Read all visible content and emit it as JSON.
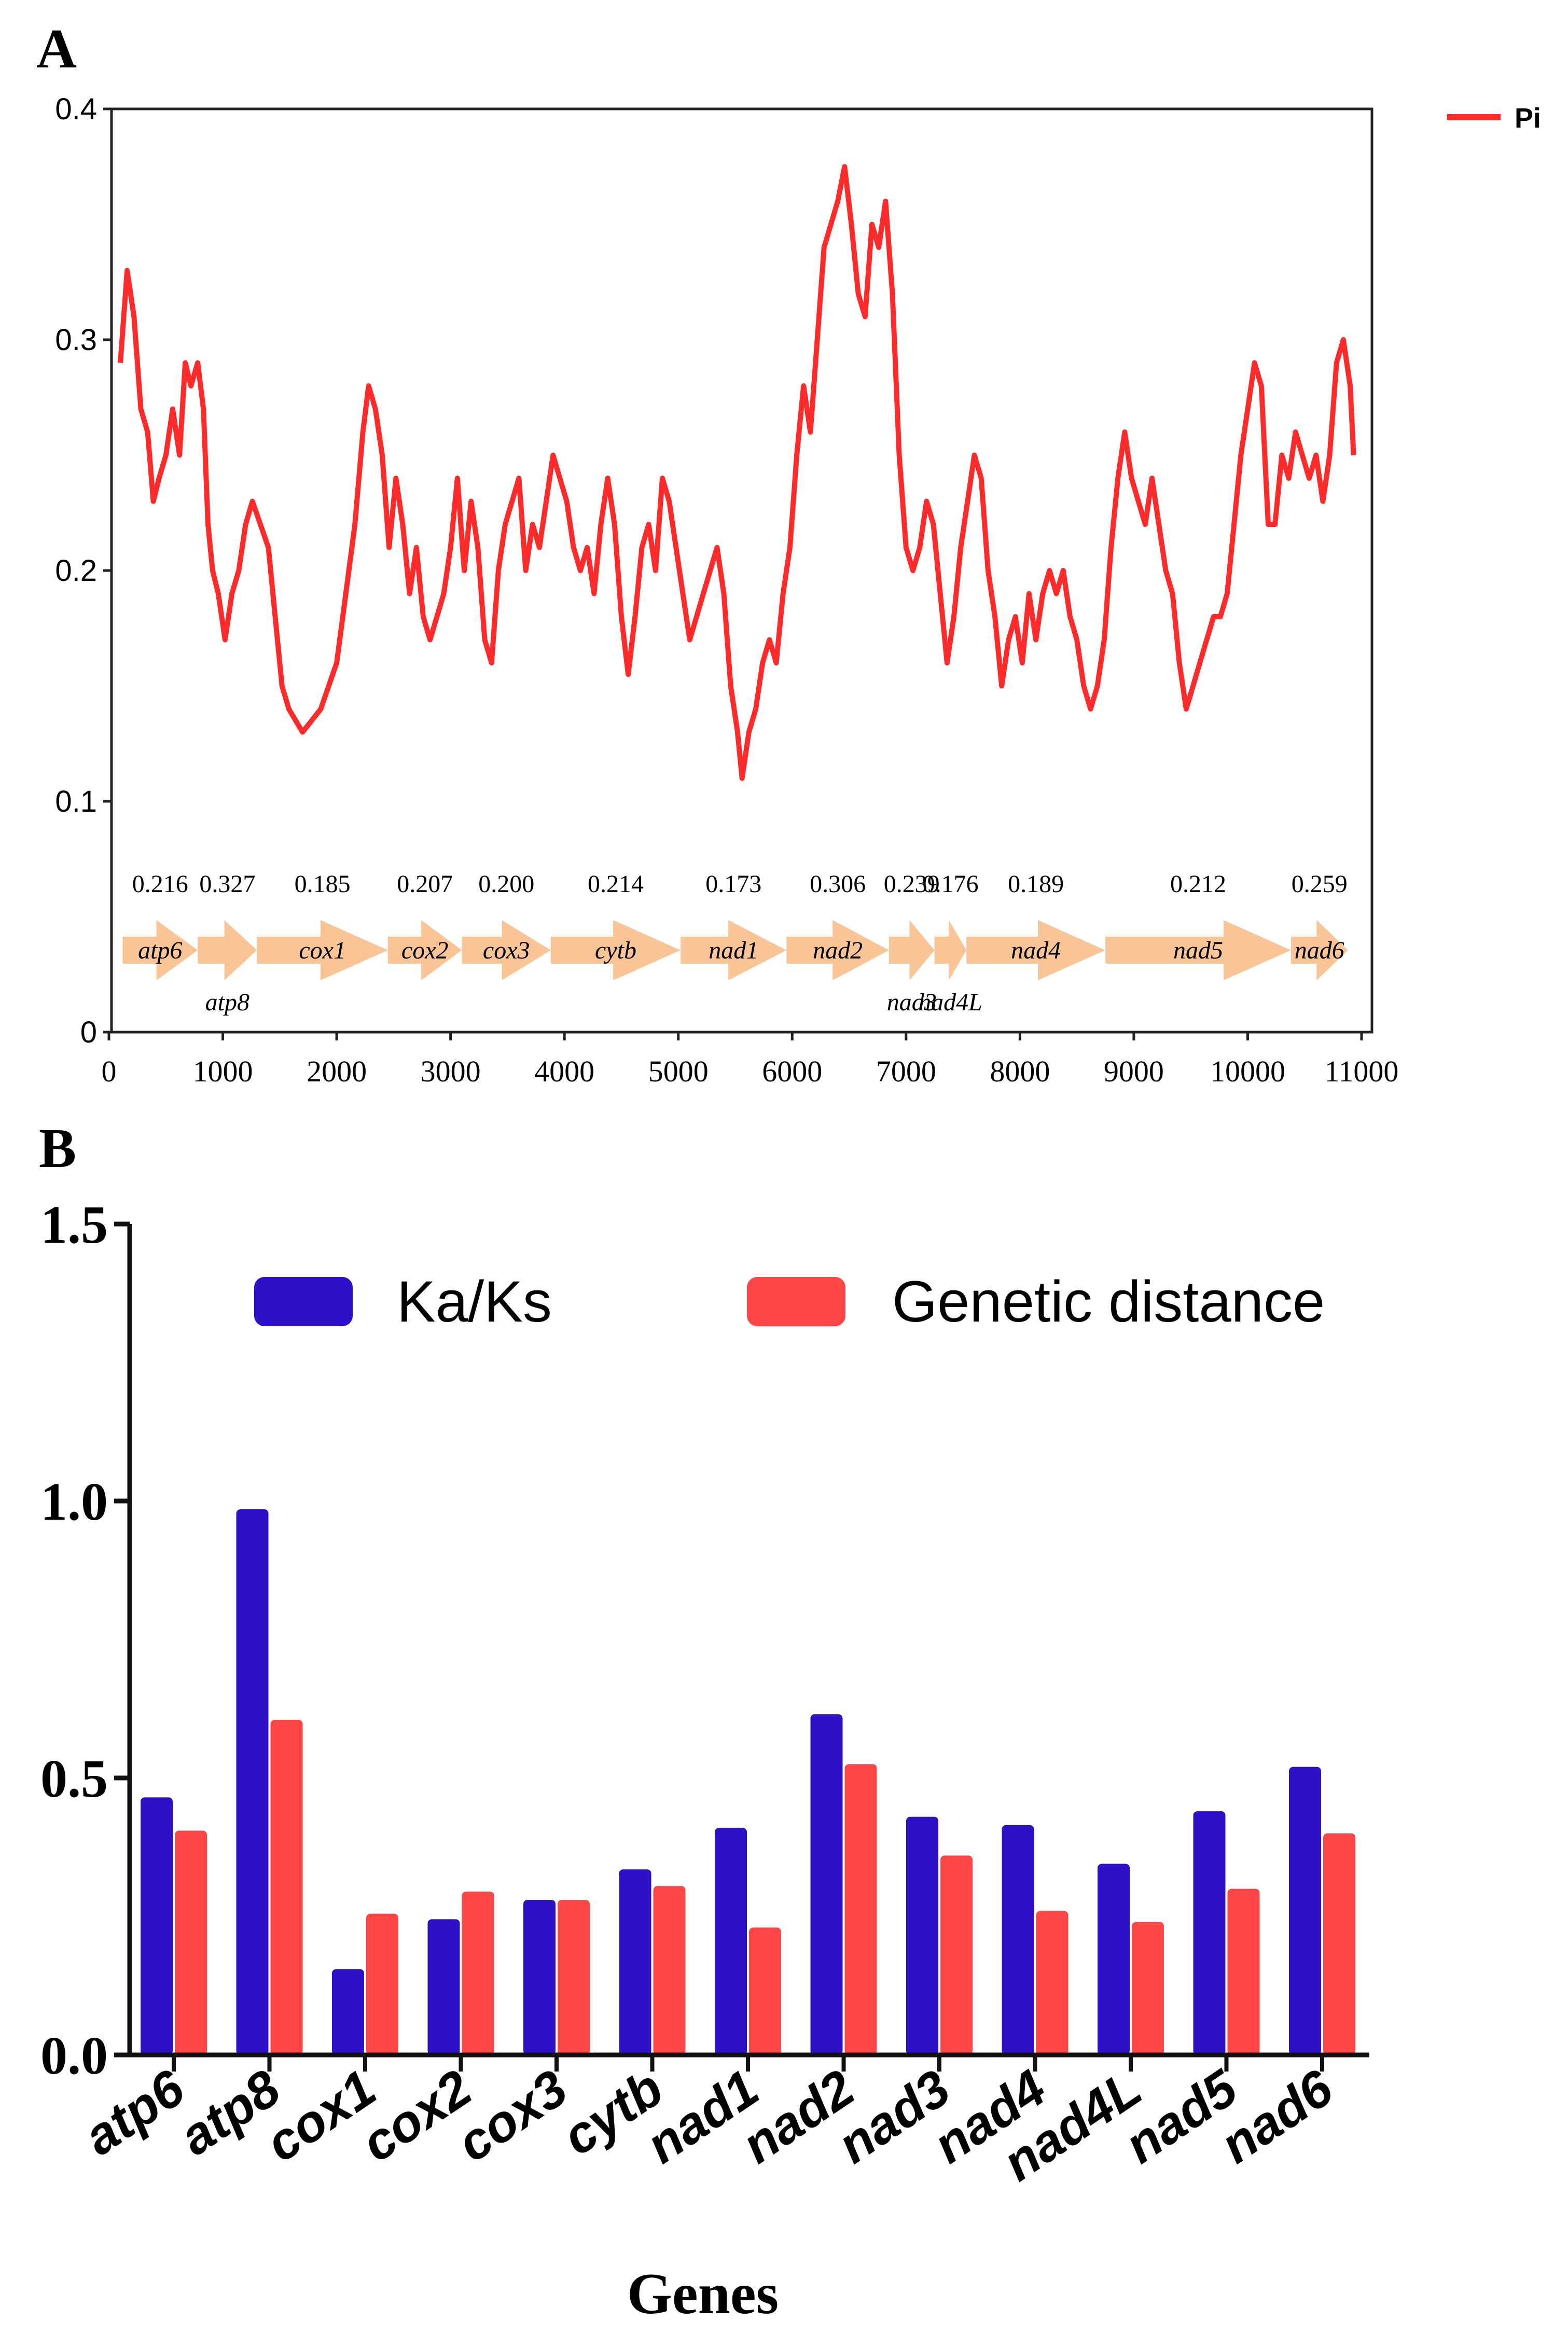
{
  "chart_data": [
    {
      "panel": "A",
      "type": "line",
      "series_name": "Pi",
      "color": "#ff2a2a",
      "arrow_color": "#f9c597",
      "xlim": [
        0,
        11000
      ],
      "ylim": [
        0,
        0.4
      ],
      "xticks": [
        "0",
        "1000",
        "2000",
        "3000",
        "4000",
        "5000",
        "6000",
        "7000",
        "8000",
        "9000",
        "10000",
        "11000"
      ],
      "yticks": [
        "0",
        "0.1",
        "0.2",
        "0.3",
        "0.4"
      ],
      "points": [
        [
          100,
          0.29
        ],
        [
          160,
          0.33
        ],
        [
          220,
          0.31
        ],
        [
          280,
          0.27
        ],
        [
          340,
          0.26
        ],
        [
          390,
          0.23
        ],
        [
          440,
          0.24
        ],
        [
          500,
          0.25
        ],
        [
          560,
          0.27
        ],
        [
          620,
          0.25
        ],
        [
          670,
          0.29
        ],
        [
          720,
          0.28
        ],
        [
          780,
          0.29
        ],
        [
          830,
          0.27
        ],
        [
          870,
          0.22
        ],
        [
          910,
          0.2
        ],
        [
          960,
          0.19
        ],
        [
          1020,
          0.17
        ],
        [
          1080,
          0.19
        ],
        [
          1140,
          0.2
        ],
        [
          1200,
          0.22
        ],
        [
          1260,
          0.23
        ],
        [
          1330,
          0.22
        ],
        [
          1400,
          0.21
        ],
        [
          1460,
          0.18
        ],
        [
          1520,
          0.15
        ],
        [
          1580,
          0.14
        ],
        [
          1640,
          0.135
        ],
        [
          1700,
          0.13
        ],
        [
          1780,
          0.135
        ],
        [
          1860,
          0.14
        ],
        [
          1930,
          0.15
        ],
        [
          2000,
          0.16
        ],
        [
          2080,
          0.19
        ],
        [
          2160,
          0.22
        ],
        [
          2230,
          0.26
        ],
        [
          2280,
          0.28
        ],
        [
          2340,
          0.27
        ],
        [
          2400,
          0.25
        ],
        [
          2460,
          0.21
        ],
        [
          2520,
          0.24
        ],
        [
          2580,
          0.22
        ],
        [
          2640,
          0.19
        ],
        [
          2700,
          0.21
        ],
        [
          2760,
          0.18
        ],
        [
          2820,
          0.17
        ],
        [
          2880,
          0.18
        ],
        [
          2940,
          0.19
        ],
        [
          3000,
          0.21
        ],
        [
          3060,
          0.24
        ],
        [
          3120,
          0.2
        ],
        [
          3180,
          0.23
        ],
        [
          3240,
          0.21
        ],
        [
          3300,
          0.17
        ],
        [
          3360,
          0.16
        ],
        [
          3420,
          0.2
        ],
        [
          3480,
          0.22
        ],
        [
          3540,
          0.23
        ],
        [
          3600,
          0.24
        ],
        [
          3660,
          0.2
        ],
        [
          3720,
          0.22
        ],
        [
          3780,
          0.21
        ],
        [
          3840,
          0.23
        ],
        [
          3900,
          0.25
        ],
        [
          3960,
          0.24
        ],
        [
          4020,
          0.23
        ],
        [
          4080,
          0.21
        ],
        [
          4140,
          0.2
        ],
        [
          4200,
          0.21
        ],
        [
          4260,
          0.19
        ],
        [
          4320,
          0.22
        ],
        [
          4380,
          0.24
        ],
        [
          4440,
          0.22
        ],
        [
          4500,
          0.18
        ],
        [
          4560,
          0.155
        ],
        [
          4620,
          0.18
        ],
        [
          4680,
          0.21
        ],
        [
          4740,
          0.22
        ],
        [
          4800,
          0.2
        ],
        [
          4860,
          0.24
        ],
        [
          4920,
          0.23
        ],
        [
          4980,
          0.21
        ],
        [
          5040,
          0.19
        ],
        [
          5100,
          0.17
        ],
        [
          5160,
          0.18
        ],
        [
          5220,
          0.19
        ],
        [
          5280,
          0.2
        ],
        [
          5340,
          0.21
        ],
        [
          5400,
          0.19
        ],
        [
          5460,
          0.15
        ],
        [
          5520,
          0.13
        ],
        [
          5560,
          0.11
        ],
        [
          5620,
          0.13
        ],
        [
          5680,
          0.14
        ],
        [
          5740,
          0.16
        ],
        [
          5800,
          0.17
        ],
        [
          5860,
          0.16
        ],
        [
          5920,
          0.19
        ],
        [
          5980,
          0.21
        ],
        [
          6040,
          0.25
        ],
        [
          6100,
          0.28
        ],
        [
          6160,
          0.26
        ],
        [
          6220,
          0.3
        ],
        [
          6280,
          0.34
        ],
        [
          6340,
          0.35
        ],
        [
          6400,
          0.36
        ],
        [
          6460,
          0.375
        ],
        [
          6520,
          0.35
        ],
        [
          6580,
          0.32
        ],
        [
          6640,
          0.31
        ],
        [
          6700,
          0.35
        ],
        [
          6760,
          0.34
        ],
        [
          6820,
          0.36
        ],
        [
          6880,
          0.32
        ],
        [
          6940,
          0.25
        ],
        [
          7000,
          0.21
        ],
        [
          7060,
          0.2
        ],
        [
          7120,
          0.21
        ],
        [
          7180,
          0.23
        ],
        [
          7240,
          0.22
        ],
        [
          7300,
          0.19
        ],
        [
          7360,
          0.16
        ],
        [
          7420,
          0.18
        ],
        [
          7480,
          0.21
        ],
        [
          7540,
          0.23
        ],
        [
          7600,
          0.25
        ],
        [
          7660,
          0.24
        ],
        [
          7720,
          0.2
        ],
        [
          7780,
          0.18
        ],
        [
          7840,
          0.15
        ],
        [
          7900,
          0.17
        ],
        [
          7960,
          0.18
        ],
        [
          8020,
          0.16
        ],
        [
          8080,
          0.19
        ],
        [
          8140,
          0.17
        ],
        [
          8200,
          0.19
        ],
        [
          8260,
          0.2
        ],
        [
          8320,
          0.19
        ],
        [
          8380,
          0.2
        ],
        [
          8440,
          0.18
        ],
        [
          8500,
          0.17
        ],
        [
          8560,
          0.15
        ],
        [
          8620,
          0.14
        ],
        [
          8680,
          0.15
        ],
        [
          8740,
          0.17
        ],
        [
          8800,
          0.21
        ],
        [
          8860,
          0.24
        ],
        [
          8920,
          0.26
        ],
        [
          8980,
          0.24
        ],
        [
          9040,
          0.23
        ],
        [
          9100,
          0.22
        ],
        [
          9160,
          0.24
        ],
        [
          9220,
          0.22
        ],
        [
          9280,
          0.2
        ],
        [
          9340,
          0.19
        ],
        [
          9400,
          0.16
        ],
        [
          9460,
          0.14
        ],
        [
          9520,
          0.15
        ],
        [
          9580,
          0.16
        ],
        [
          9640,
          0.17
        ],
        [
          9700,
          0.18
        ],
        [
          9760,
          0.18
        ],
        [
          9820,
          0.19
        ],
        [
          9880,
          0.22
        ],
        [
          9940,
          0.25
        ],
        [
          10000,
          0.27
        ],
        [
          10060,
          0.29
        ],
        [
          10120,
          0.28
        ],
        [
          10180,
          0.22
        ],
        [
          10240,
          0.22
        ],
        [
          10300,
          0.25
        ],
        [
          10360,
          0.24
        ],
        [
          10420,
          0.26
        ],
        [
          10480,
          0.25
        ],
        [
          10540,
          0.24
        ],
        [
          10600,
          0.25
        ],
        [
          10660,
          0.23
        ],
        [
          10720,
          0.25
        ],
        [
          10780,
          0.29
        ],
        [
          10840,
          0.3
        ],
        [
          10900,
          0.28
        ],
        [
          10930,
          0.25
        ]
      ],
      "genes": [
        {
          "name": "atp6",
          "start": 120,
          "end": 780,
          "pi": "0.216",
          "label_pos": "in"
        },
        {
          "name": "atp8",
          "start": 780,
          "end": 1300,
          "pi": "0.327",
          "label_pos": "below"
        },
        {
          "name": "cox1",
          "start": 1300,
          "end": 2450,
          "pi": "0.185",
          "label_pos": "in"
        },
        {
          "name": "cox2",
          "start": 2450,
          "end": 3100,
          "pi": "0.207",
          "label_pos": "in"
        },
        {
          "name": "cox3",
          "start": 3100,
          "end": 3880,
          "pi": "0.200",
          "label_pos": "in"
        },
        {
          "name": "cytb",
          "start": 3880,
          "end": 5020,
          "pi": "0.214",
          "label_pos": "in"
        },
        {
          "name": "nad1",
          "start": 5020,
          "end": 5950,
          "pi": "0.173",
          "label_pos": "in"
        },
        {
          "name": "nad2",
          "start": 5950,
          "end": 6850,
          "pi": "0.306",
          "label_pos": "in"
        },
        {
          "name": "nad3",
          "start": 6850,
          "end": 7250,
          "pi": "0.239",
          "label_pos": "below"
        },
        {
          "name": "nad4L",
          "start": 7250,
          "end": 7530,
          "pi": "0.176",
          "label_pos": "below"
        },
        {
          "name": "nad4",
          "start": 7530,
          "end": 8750,
          "pi": "0.189",
          "label_pos": "in"
        },
        {
          "name": "nad5",
          "start": 8750,
          "end": 10380,
          "pi": "0.212",
          "label_pos": "in"
        },
        {
          "name": "nad6",
          "start": 10380,
          "end": 10880,
          "pi": "0.259",
          "label_pos": "in"
        }
      ]
    },
    {
      "panel": "B",
      "type": "bar",
      "categories": [
        "atp6",
        "atp8",
        "cox1",
        "cox2",
        "cox3",
        "cytb",
        "nad1",
        "nad2",
        "nad3",
        "nad4",
        "nad4L",
        "nad5",
        "nad6"
      ],
      "series": [
        {
          "name": "Ka/Ks",
          "color": "#2e10c6",
          "values": [
            0.465,
            0.985,
            0.155,
            0.245,
            0.28,
            0.335,
            0.41,
            0.615,
            0.43,
            0.415,
            0.345,
            0.44,
            0.52
          ]
        },
        {
          "name": "Genetic distance",
          "color": "#ff4646",
          "values": [
            0.405,
            0.605,
            0.255,
            0.295,
            0.28,
            0.305,
            0.23,
            0.525,
            0.36,
            0.26,
            0.24,
            0.3,
            0.4
          ]
        }
      ],
      "ylim": [
        0,
        1.5
      ],
      "yticks": [
        "0.0",
        "0.5",
        "1.0",
        "1.5"
      ],
      "xlabel": "Genes"
    }
  ],
  "panel_labels": {
    "a": "A",
    "b": "B"
  }
}
